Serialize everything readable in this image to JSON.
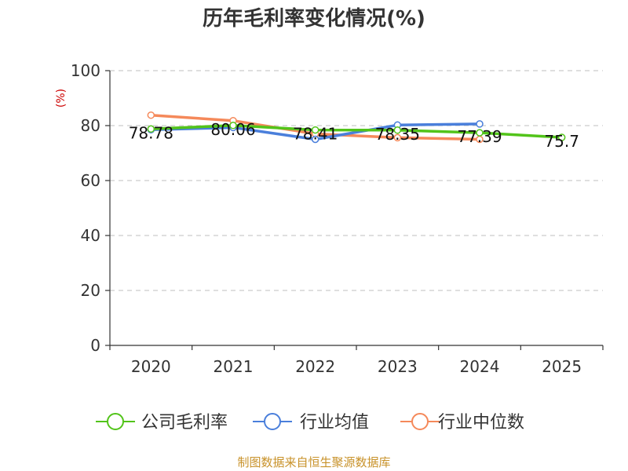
{
  "chart_data": {
    "type": "line",
    "title": "历年毛利率变化情况(%)",
    "ylabel": "(%)",
    "xlabel": "",
    "ylim": [
      0,
      100
    ],
    "yticks": [
      0,
      20,
      40,
      60,
      80,
      100
    ],
    "categories": [
      "2020",
      "2021",
      "2022",
      "2023",
      "2024",
      "2025"
    ],
    "grid": "horizontal-dashed",
    "legend_position": "bottom",
    "series": [
      {
        "name": "公司毛利率",
        "color": "#52c41a",
        "values": [
          78.78,
          80.06,
          78.41,
          78.35,
          77.39,
          75.7
        ],
        "labels": [
          "78.78",
          "80.06",
          "78.41",
          "78.35",
          "77.39",
          "75.7"
        ]
      },
      {
        "name": "行业均值",
        "color": "#4a7fdb",
        "values": [
          78.5,
          79.3,
          75.0,
          80.2,
          80.6,
          null
        ]
      },
      {
        "name": "行业中位数",
        "color": "#f5895a",
        "values": [
          83.8,
          81.8,
          77.0,
          75.6,
          75.0,
          null
        ]
      }
    ]
  },
  "source_text": "制图数据来自恒生聚源数据库"
}
